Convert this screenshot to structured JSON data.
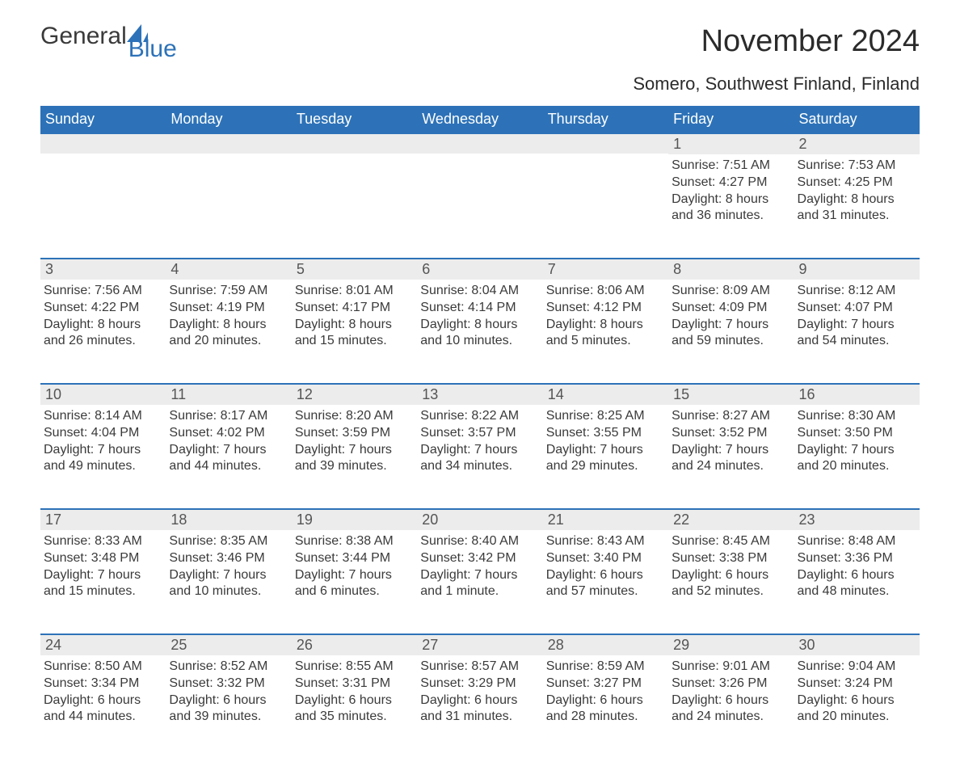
{
  "brand": {
    "part1": "General",
    "part2": "Blue",
    "sail_color": "#2d72b8"
  },
  "title": "November 2024",
  "location": "Somero, Southwest Finland, Finland",
  "colors": {
    "header_bg": "#2d72b8",
    "header_text": "#ffffff",
    "daynum_bg": "#ececec",
    "daynum_border": "#2d72b8",
    "body_text": "#3a3a3a",
    "page_bg": "#ffffff"
  },
  "fonts": {
    "title_size": 38,
    "location_size": 22,
    "header_size": 18,
    "daynum_size": 18,
    "body_size": 16
  },
  "calendar": {
    "type": "table",
    "days_of_week": [
      "Sunday",
      "Monday",
      "Tuesday",
      "Wednesday",
      "Thursday",
      "Friday",
      "Saturday"
    ],
    "first_weekday_index": 5,
    "days": [
      {
        "n": 1,
        "sunrise": "7:51 AM",
        "sunset": "4:27 PM",
        "daylight": "8 hours and 36 minutes."
      },
      {
        "n": 2,
        "sunrise": "7:53 AM",
        "sunset": "4:25 PM",
        "daylight": "8 hours and 31 minutes."
      },
      {
        "n": 3,
        "sunrise": "7:56 AM",
        "sunset": "4:22 PM",
        "daylight": "8 hours and 26 minutes."
      },
      {
        "n": 4,
        "sunrise": "7:59 AM",
        "sunset": "4:19 PM",
        "daylight": "8 hours and 20 minutes."
      },
      {
        "n": 5,
        "sunrise": "8:01 AM",
        "sunset": "4:17 PM",
        "daylight": "8 hours and 15 minutes."
      },
      {
        "n": 6,
        "sunrise": "8:04 AM",
        "sunset": "4:14 PM",
        "daylight": "8 hours and 10 minutes."
      },
      {
        "n": 7,
        "sunrise": "8:06 AM",
        "sunset": "4:12 PM",
        "daylight": "8 hours and 5 minutes."
      },
      {
        "n": 8,
        "sunrise": "8:09 AM",
        "sunset": "4:09 PM",
        "daylight": "7 hours and 59 minutes."
      },
      {
        "n": 9,
        "sunrise": "8:12 AM",
        "sunset": "4:07 PM",
        "daylight": "7 hours and 54 minutes."
      },
      {
        "n": 10,
        "sunrise": "8:14 AM",
        "sunset": "4:04 PM",
        "daylight": "7 hours and 49 minutes."
      },
      {
        "n": 11,
        "sunrise": "8:17 AM",
        "sunset": "4:02 PM",
        "daylight": "7 hours and 44 minutes."
      },
      {
        "n": 12,
        "sunrise": "8:20 AM",
        "sunset": "3:59 PM",
        "daylight": "7 hours and 39 minutes."
      },
      {
        "n": 13,
        "sunrise": "8:22 AM",
        "sunset": "3:57 PM",
        "daylight": "7 hours and 34 minutes."
      },
      {
        "n": 14,
        "sunrise": "8:25 AM",
        "sunset": "3:55 PM",
        "daylight": "7 hours and 29 minutes."
      },
      {
        "n": 15,
        "sunrise": "8:27 AM",
        "sunset": "3:52 PM",
        "daylight": "7 hours and 24 minutes."
      },
      {
        "n": 16,
        "sunrise": "8:30 AM",
        "sunset": "3:50 PM",
        "daylight": "7 hours and 20 minutes."
      },
      {
        "n": 17,
        "sunrise": "8:33 AM",
        "sunset": "3:48 PM",
        "daylight": "7 hours and 15 minutes."
      },
      {
        "n": 18,
        "sunrise": "8:35 AM",
        "sunset": "3:46 PM",
        "daylight": "7 hours and 10 minutes."
      },
      {
        "n": 19,
        "sunrise": "8:38 AM",
        "sunset": "3:44 PM",
        "daylight": "7 hours and 6 minutes."
      },
      {
        "n": 20,
        "sunrise": "8:40 AM",
        "sunset": "3:42 PM",
        "daylight": "7 hours and 1 minute."
      },
      {
        "n": 21,
        "sunrise": "8:43 AM",
        "sunset": "3:40 PM",
        "daylight": "6 hours and 57 minutes."
      },
      {
        "n": 22,
        "sunrise": "8:45 AM",
        "sunset": "3:38 PM",
        "daylight": "6 hours and 52 minutes."
      },
      {
        "n": 23,
        "sunrise": "8:48 AM",
        "sunset": "3:36 PM",
        "daylight": "6 hours and 48 minutes."
      },
      {
        "n": 24,
        "sunrise": "8:50 AM",
        "sunset": "3:34 PM",
        "daylight": "6 hours and 44 minutes."
      },
      {
        "n": 25,
        "sunrise": "8:52 AM",
        "sunset": "3:32 PM",
        "daylight": "6 hours and 39 minutes."
      },
      {
        "n": 26,
        "sunrise": "8:55 AM",
        "sunset": "3:31 PM",
        "daylight": "6 hours and 35 minutes."
      },
      {
        "n": 27,
        "sunrise": "8:57 AM",
        "sunset": "3:29 PM",
        "daylight": "6 hours and 31 minutes."
      },
      {
        "n": 28,
        "sunrise": "8:59 AM",
        "sunset": "3:27 PM",
        "daylight": "6 hours and 28 minutes."
      },
      {
        "n": 29,
        "sunrise": "9:01 AM",
        "sunset": "3:26 PM",
        "daylight": "6 hours and 24 minutes."
      },
      {
        "n": 30,
        "sunrise": "9:04 AM",
        "sunset": "3:24 PM",
        "daylight": "6 hours and 20 minutes."
      }
    ],
    "labels": {
      "sunrise": "Sunrise:",
      "sunset": "Sunset:",
      "daylight": "Daylight:"
    }
  }
}
